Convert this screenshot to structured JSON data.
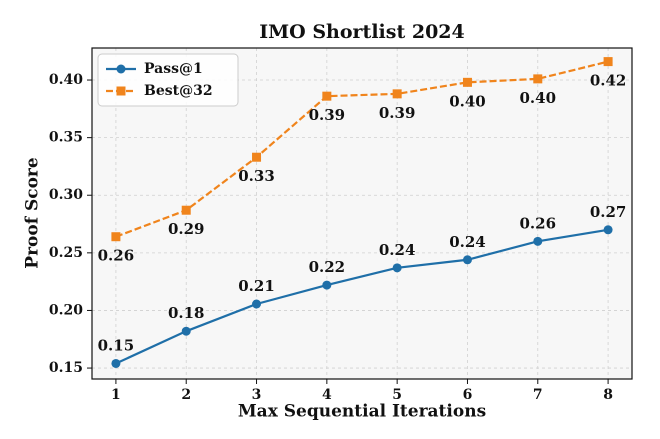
{
  "chart_data": {
    "type": "line",
    "title": "IMO Shortlist 2024",
    "x_label": "Max Sequential Iterations",
    "y_label": "Proof Score",
    "x": [
      1,
      2,
      3,
      4,
      5,
      6,
      7,
      8
    ],
    "series": [
      {
        "name": "Pass@1",
        "color": "#1f6fa8",
        "marker": "circle",
        "linestyle": "solid",
        "label_position": "above",
        "values": [
          0.154,
          0.182,
          0.2056,
          0.222,
          0.237,
          0.244,
          0.26,
          0.27
        ],
        "value_labels": [
          "0.15",
          "0.18",
          "0.21",
          "0.22",
          "0.24",
          "0.24",
          "0.26",
          "0.27"
        ]
      },
      {
        "name": "Best@32",
        "color": "#f0841c",
        "marker": "square",
        "linestyle": "dashed",
        "label_position": "below",
        "values": [
          0.264,
          0.287,
          0.333,
          0.386,
          0.388,
          0.398,
          0.401,
          0.416
        ],
        "value_labels": [
          "0.26",
          "0.29",
          "0.33",
          "0.39",
          "0.39",
          "0.40",
          "0.40",
          "0.42"
        ]
      }
    ],
    "xlim": [
      0.66,
      8.34
    ],
    "ylim": [
      0.1405,
      0.4278
    ],
    "xticks": [
      1,
      2,
      3,
      4,
      5,
      6,
      7,
      8
    ],
    "yticks": [
      0.15,
      {
        "value": 0.2,
        "label": "0.20"
      },
      0.25,
      {
        "value": 0.3,
        "label": "0.30"
      },
      0.35,
      {
        "value": 0.4,
        "label": "0.40"
      }
    ],
    "grid": true,
    "legend": "upper left"
  }
}
